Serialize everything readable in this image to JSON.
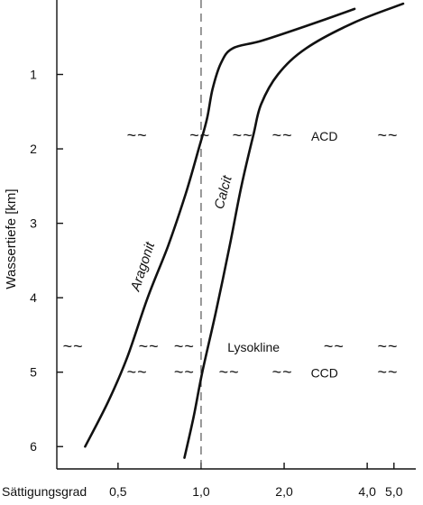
{
  "chart_data": {
    "type": "line",
    "ylabel": "Wassertiefe  [km]",
    "xlabel": "Sättigungsgrad",
    "x_scale": "log",
    "xlim": [
      0.3,
      6.0
    ],
    "ylim": [
      0,
      6.3
    ],
    "y_inverted": true,
    "x_ticks": [
      {
        "value": 0.5,
        "label": "0,5"
      },
      {
        "value": 1.0,
        "label": "1,0"
      },
      {
        "value": 2.0,
        "label": "2,0"
      },
      {
        "value": 4.0,
        "label": "4,0"
      },
      {
        "value": 5.0,
        "label": "5,0"
      }
    ],
    "y_ticks": [
      {
        "value": 1,
        "label": "1"
      },
      {
        "value": 2,
        "label": "2"
      },
      {
        "value": 3,
        "label": "3"
      },
      {
        "value": 4,
        "label": "4"
      },
      {
        "value": 5,
        "label": "5"
      },
      {
        "value": 6,
        "label": "6"
      }
    ],
    "reference_line": {
      "x": 1.0,
      "style": "dashed"
    },
    "series": [
      {
        "name": "Aragonit",
        "points": [
          [
            3.6,
            0.12
          ],
          [
            2.4,
            0.35
          ],
          [
            1.65,
            0.55
          ],
          [
            1.3,
            0.65
          ],
          [
            1.18,
            0.85
          ],
          [
            1.1,
            1.2
          ],
          [
            1.05,
            1.6
          ],
          [
            0.98,
            2.0
          ],
          [
            0.88,
            2.6
          ],
          [
            0.76,
            3.3
          ],
          [
            0.64,
            4.0
          ],
          [
            0.54,
            4.8
          ],
          [
            0.46,
            5.4
          ],
          [
            0.38,
            6.0
          ]
        ]
      },
      {
        "name": "Calcit",
        "points": [
          [
            5.4,
            0.05
          ],
          [
            3.6,
            0.3
          ],
          [
            2.4,
            0.65
          ],
          [
            1.9,
            1.0
          ],
          [
            1.65,
            1.4
          ],
          [
            1.55,
            1.8
          ],
          [
            1.4,
            2.5
          ],
          [
            1.27,
            3.3
          ],
          [
            1.13,
            4.2
          ],
          [
            1.01,
            5.0
          ],
          [
            0.94,
            5.6
          ],
          [
            0.87,
            6.15
          ]
        ]
      }
    ],
    "annotations": [
      {
        "text": "ACD",
        "x": 2.8,
        "y": 1.82
      },
      {
        "text": "Lysokline",
        "x": 1.55,
        "y": 4.65
      },
      {
        "text": "CCD",
        "x": 2.8,
        "y": 5.0
      }
    ],
    "wave_rows": [
      {
        "y": 1.82,
        "x": [
          0.58,
          0.98,
          1.4,
          1.95,
          4.7
        ]
      },
      {
        "y": 4.65,
        "x": [
          0.34,
          0.64,
          0.86,
          3.0,
          4.7
        ]
      },
      {
        "y": 5.0,
        "x": [
          0.58,
          0.86,
          1.25,
          1.95,
          4.7
        ]
      }
    ],
    "wave_glyph": "~ ~"
  }
}
